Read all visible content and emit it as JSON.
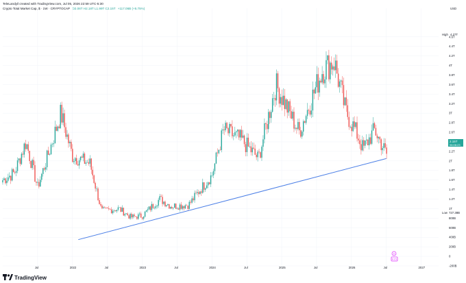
{
  "header": {
    "byline": "TeleLandyil created with TradingView.com, Jul 05, 2026 22:59 UTC-5:30",
    "symbol_line": "Crypto Total Market Cap, $ · 1W · CRYPTOCAP",
    "ohlc": "O2.06T H2.18T L1.99T C2.15T",
    "change": "+117.06B (+5.75%)"
  },
  "price_panel": {
    "currency": "USD",
    "high_label": "High",
    "high_value": "4.27T",
    "low_label": "Low",
    "low_value": "727.38B",
    "last_price": "2.15T",
    "countdown": "06:08:23"
  },
  "footer": {
    "logo_text": "TradingView"
  },
  "markers": {
    "dividend_badge": "D",
    "event_badge": "E15"
  },
  "colors": {
    "up": "#26a69a",
    "down": "#ef5350",
    "trendline": "#4a7ee6",
    "price_tag": "#26a69a",
    "badge": "#e040fb"
  },
  "chart_data": {
    "type": "candlestick",
    "y_unit": "USD (T = trillion, B = billion)",
    "ylim": [
      -200000000000,
      5200000000000
    ],
    "y_ticks": [
      "4.6T",
      "4.4T",
      "4.2T",
      "4T",
      "3.8T",
      "3.6T",
      "3.4T",
      "3.2T",
      "3T",
      "2.8T",
      "2.6T",
      "2.4T",
      "2.2T",
      "2T",
      "1.8T",
      "1.6T",
      "1.4T",
      "1.2T",
      "1T",
      "800B",
      "600B",
      "400B",
      "200B",
      "0",
      "-200B"
    ],
    "x_ticks": [
      "Jul",
      "2022",
      "Jul",
      "2023",
      "Jul",
      "2024",
      "Jul",
      "2025",
      "Jul",
      "2026",
      "Jul",
      "2027"
    ],
    "x_range": [
      "2021-01",
      "2027-04"
    ],
    "grid": true,
    "anchors": [
      [
        "2021-01",
        1.6
      ],
      [
        "2021-03",
        1.75
      ],
      [
        "2021-05",
        2.4
      ],
      [
        "2021-07",
        1.45
      ],
      [
        "2021-09",
        2.2
      ],
      [
        "2021-11",
        3.0
      ],
      [
        "2022-01",
        2.1
      ],
      [
        "2022-04",
        1.95
      ],
      [
        "2022-06",
        0.95
      ],
      [
        "2022-09",
        1.0
      ],
      [
        "2022-11",
        0.82
      ],
      [
        "2023-01",
        0.85
      ],
      [
        "2023-04",
        1.2
      ],
      [
        "2023-06",
        1.05
      ],
      [
        "2023-09",
        1.08
      ],
      [
        "2023-11",
        1.4
      ],
      [
        "2024-01",
        1.7
      ],
      [
        "2024-03",
        2.65
      ],
      [
        "2024-06",
        2.45
      ],
      [
        "2024-09",
        2.05
      ],
      [
        "2024-12",
        3.6
      ],
      [
        "2025-02",
        3.1
      ],
      [
        "2025-04",
        2.6
      ],
      [
        "2025-06",
        3.25
      ],
      [
        "2025-08",
        3.9
      ],
      [
        "2025-10",
        4.1
      ],
      [
        "2025-12",
        3.05
      ],
      [
        "2026-02",
        2.55
      ],
      [
        "2026-03",
        2.25
      ],
      [
        "2026-05",
        2.65
      ],
      [
        "2026-07",
        2.15
      ]
    ],
    "trendline": {
      "from": [
        "2022-02",
        0.35
      ],
      "to": [
        "2026-07",
        2.05
      ]
    },
    "last_close": 2.15
  }
}
